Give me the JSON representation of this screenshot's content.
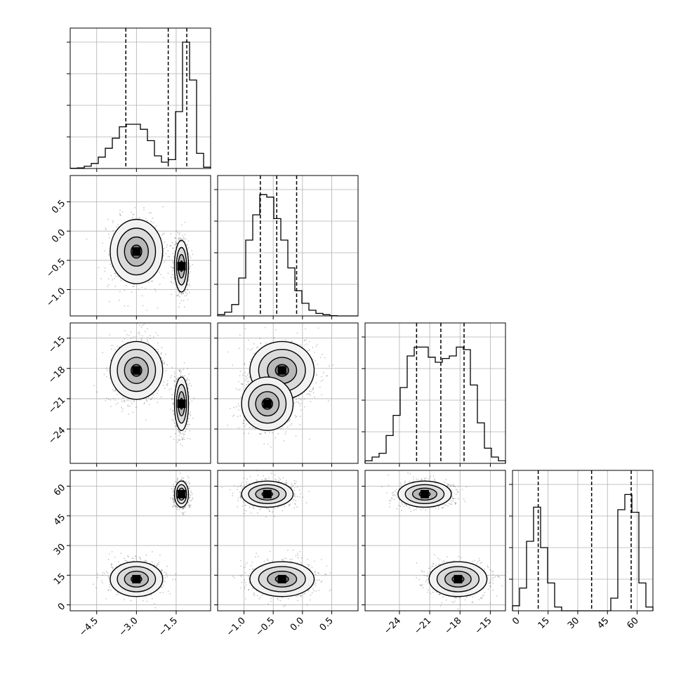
{
  "chart_data": {
    "type": "corner",
    "title": "",
    "grid": true,
    "parameters": [
      {
        "range": [
          -5.5,
          -0.2
        ],
        "ticks": [
          -4.5,
          -3.0,
          -1.5
        ],
        "tick_labels": [
          "−4.5",
          "−3.0",
          "−1.5"
        ],
        "quantile_lines": [
          -3.4,
          -1.8,
          -1.1
        ],
        "hist": [
          0.002,
          0.005,
          0.018,
          0.04,
          0.09,
          0.16,
          0.24,
          0.33,
          0.35,
          0.35,
          0.31,
          0.22,
          0.1,
          0.05,
          0.07,
          0.45,
          1.0,
          0.7,
          0.12,
          0.01
        ]
      },
      {
        "range": [
          -1.45,
          0.95
        ],
        "ticks": [
          -1.0,
          -0.5,
          0.0,
          0.5
        ],
        "tick_labels": [
          "−1.0",
          "−0.5",
          "0.0",
          "0.5"
        ],
        "y_tick_labels": [
          "0.5",
          "0.0",
          "−0.5",
          "−1.0"
        ],
        "quantile_lines": [
          -0.72,
          -0.44,
          -0.1
        ],
        "hist": [
          0.01,
          0.03,
          0.09,
          0.3,
          0.6,
          0.8,
          0.96,
          0.94,
          0.77,
          0.6,
          0.38,
          0.2,
          0.1,
          0.045,
          0.02,
          0.01,
          0.002,
          0,
          0,
          0
        ]
      },
      {
        "range": [
          -27.4,
          -13.5
        ],
        "ticks": [
          -24,
          -21,
          -18,
          -15
        ],
        "tick_labels": [
          "−24",
          "−21",
          "−18",
          "−15"
        ],
        "y_tick_labels": [
          "−15",
          "−18",
          "−21",
          "−24"
        ],
        "quantile_lines": [
          -22.3,
          -19.9,
          -17.6
        ],
        "hist": [
          0.02,
          0.05,
          0.08,
          0.22,
          0.38,
          0.6,
          0.85,
          0.92,
          0.92,
          0.84,
          0.8,
          0.83,
          0.85,
          0.92,
          0.9,
          0.62,
          0.32,
          0.12,
          0.05,
          0.02
        ]
      },
      {
        "range": [
          -3,
          68
        ],
        "ticks": [
          0,
          15,
          30,
          45,
          60
        ],
        "tick_labels": [
          "0",
          "15",
          "30",
          "45",
          "60"
        ],
        "y_tick_labels": [
          "60",
          "45",
          "30",
          "15",
          "0"
        ],
        "quantile_lines": [
          10,
          37,
          57
        ],
        "hist": [
          0.04,
          0.18,
          0.55,
          0.82,
          0.5,
          0.22,
          0.03,
          0,
          0,
          0,
          0,
          0,
          0,
          0,
          0.1,
          0.8,
          0.92,
          0.78,
          0.22,
          0.03
        ]
      }
    ],
    "modes": [
      {
        "mean": [
          -3.0,
          -0.35,
          -18.2,
          13
        ],
        "sd": [
          0.45,
          0.25,
          1.3,
          4
        ],
        "weight": 0.5
      },
      {
        "mean": [
          -1.3,
          -0.6,
          -21.5,
          56
        ],
        "sd": [
          0.12,
          0.2,
          1.2,
          3
        ],
        "weight": 0.5
      }
    ]
  }
}
